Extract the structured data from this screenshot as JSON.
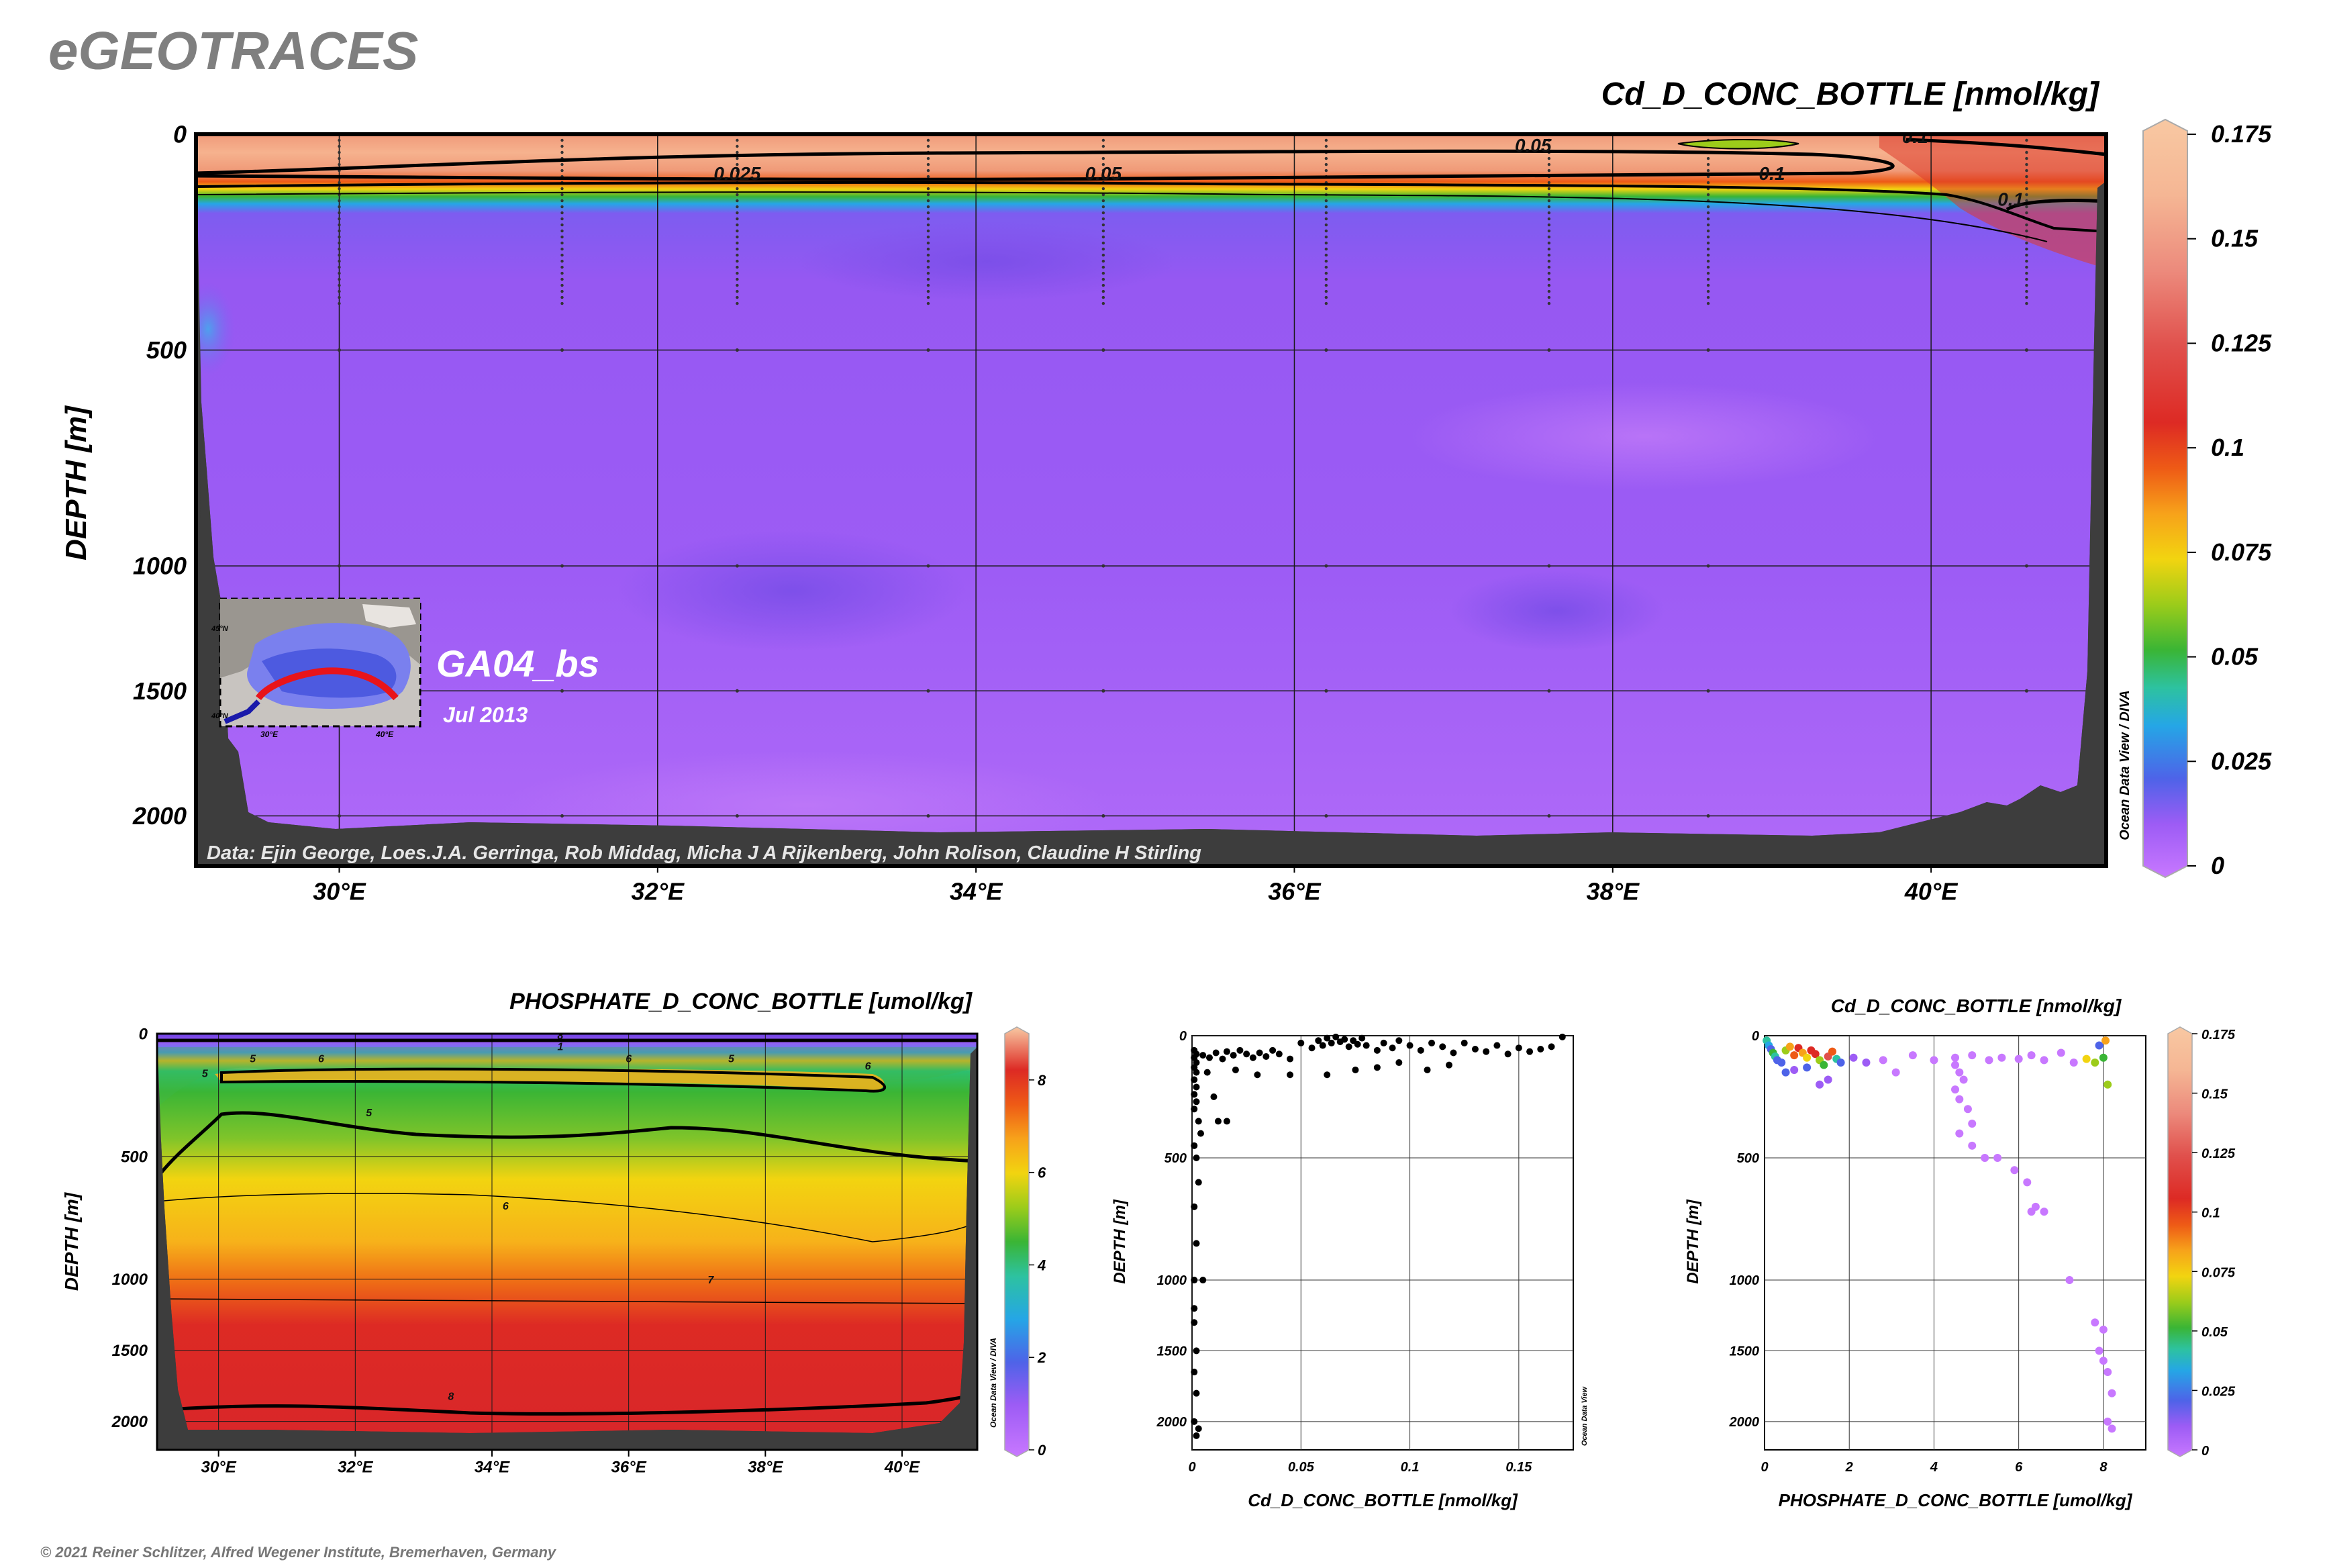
{
  "header": {
    "brand": "eGEOTRACES",
    "copyright": "© 2021 Reiner Schlitzer, Alfred Wegener Institute, Bremerhaven, Germany",
    "odv_credit_diva": "Ocean Data View / DIVA",
    "odv_credit": "Ocean Data View"
  },
  "main": {
    "title": "Cd_D_CONC_BOTTLE [nmol/kg]",
    "section_label": "GA04_bs",
    "date_label": "Jul 2013",
    "data_credit": "Data: Ejin George, Loes.J.A. Gerringa, Rob Middag, Micha J A Rijkenberg, John Rolison, Claudine H Stirling",
    "inset_lat_labels": [
      "45°N",
      "40°N"
    ],
    "inset_lon_labels": [
      "30°E",
      "40°E"
    ]
  },
  "colors": {
    "background_purple": "#9e5cf5",
    "bathymetry": "#3d3d3d",
    "grid": "#1a1a1a",
    "palette": [
      "#c878ff",
      "#9d5cf5",
      "#4e63e8",
      "#25a6e6",
      "#2dc2a0",
      "#3ab535",
      "#9ccc1a",
      "#f2d410",
      "#f7a21a",
      "#ee5a16",
      "#dd2a24",
      "#e0504c",
      "#ec8a7c",
      "#f5b694",
      "#f8c8a2"
    ]
  },
  "chart_data": [
    {
      "type": "heatmap",
      "title": "Cd_D_CONC_BOTTLE [nmol/kg]",
      "xlabel": "",
      "ylabel": "DEPTH [m]",
      "x_ticks": [
        "30°E",
        "32°E",
        "34°E",
        "36°E",
        "38°E",
        "40°E"
      ],
      "y_ticks": [
        "0",
        "500",
        "1000",
        "1500",
        "2000"
      ],
      "xlim": [
        29.1,
        41.1
      ],
      "ylim": [
        2200,
        0
      ],
      "colorbar_ticks": [
        "0.175",
        "0.15",
        "0.125",
        "0.1",
        "0.075",
        "0.05",
        "0.025",
        "0"
      ],
      "colorbar_range": [
        0,
        0.175
      ],
      "contour_labels": [
        {
          "label": "0.025",
          "lon": 32.5,
          "depth": 90
        },
        {
          "label": "0.05",
          "lon": 34.8,
          "depth": 90
        },
        {
          "label": "0.05",
          "lon": 37.5,
          "depth": 25
        },
        {
          "label": "0.1",
          "lon": 39.0,
          "depth": 90
        },
        {
          "label": "0.1",
          "lon": 40.5,
          "depth": 150
        },
        {
          "label": "0.1",
          "lon": 39.9,
          "depth": 5
        }
      ],
      "station_lons": [
        30.0,
        31.4,
        32.5,
        33.7,
        34.8,
        36.2,
        37.6,
        38.6,
        40.6
      ]
    },
    {
      "type": "heatmap",
      "title": "PHOSPHATE_D_CONC_BOTTLE [umol/kg]",
      "xlabel": "",
      "ylabel": "DEPTH [m]",
      "x_ticks": [
        "30°E",
        "32°E",
        "34°E",
        "36°E",
        "38°E",
        "40°E"
      ],
      "y_ticks": [
        "0",
        "500",
        "1000",
        "1500",
        "2000"
      ],
      "xlim": [
        29.1,
        41.1
      ],
      "ylim": [
        2200,
        0
      ],
      "colorbar_ticks": [
        "8",
        "6",
        "4",
        "2",
        "0"
      ],
      "colorbar_range": [
        0,
        9
      ],
      "contour_labels": [
        {
          "label": "8",
          "lon": 35.0,
          "depth": 5
        },
        {
          "label": "1",
          "lon": 35.0,
          "depth": 50
        },
        {
          "label": "6",
          "lon": 31.5,
          "depth": 100
        },
        {
          "label": "5",
          "lon": 30.5,
          "depth": 100
        },
        {
          "label": "5",
          "lon": 29.8,
          "depth": 160
        },
        {
          "label": "6",
          "lon": 36.0,
          "depth": 100
        },
        {
          "label": "5",
          "lon": 37.5,
          "depth": 100
        },
        {
          "label": "6",
          "lon": 39.5,
          "depth": 130
        },
        {
          "label": "5",
          "lon": 32.2,
          "depth": 320
        },
        {
          "label": "6",
          "lon": 34.2,
          "depth": 700
        },
        {
          "label": "7",
          "lon": 37.2,
          "depth": 1000
        },
        {
          "label": "8",
          "lon": 33.4,
          "depth": 1820
        }
      ]
    },
    {
      "type": "scatter",
      "title": "",
      "xlabel": "Cd_D_CONC_BOTTLE [nmol/kg]",
      "ylabel": "DEPTH [m]",
      "x_ticks": [
        "0",
        "0.05",
        "0.1",
        "0.15"
      ],
      "y_ticks": [
        "0",
        "500",
        "1000",
        "1500",
        "2000"
      ],
      "xlim": [
        0,
        0.175
      ],
      "ylim": [
        2200,
        0
      ],
      "points": [
        [
          0.001,
          60
        ],
        [
          0.002,
          75
        ],
        [
          0.001,
          90
        ],
        [
          0.002,
          110
        ],
        [
          0.001,
          130
        ],
        [
          0.002,
          150
        ],
        [
          0.001,
          180
        ],
        [
          0.002,
          210
        ],
        [
          0.001,
          240
        ],
        [
          0.002,
          270
        ],
        [
          0.001,
          300
        ],
        [
          0.003,
          350
        ],
        [
          0.004,
          400
        ],
        [
          0.001,
          450
        ],
        [
          0.002,
          500
        ],
        [
          0.003,
          600
        ],
        [
          0.001,
          700
        ],
        [
          0.002,
          850
        ],
        [
          0.001,
          1000
        ],
        [
          0.005,
          1000
        ],
        [
          0.001,
          1200
        ],
        [
          0.001,
          1300
        ],
        [
          0.002,
          1500
        ],
        [
          0.001,
          1650
        ],
        [
          0.002,
          1800
        ],
        [
          0.001,
          2000
        ],
        [
          0.003,
          2050
        ],
        [
          0.002,
          2100
        ],
        [
          0.005,
          80
        ],
        [
          0.008,
          90
        ],
        [
          0.011,
          70
        ],
        [
          0.014,
          95
        ],
        [
          0.016,
          65
        ],
        [
          0.019,
          80
        ],
        [
          0.022,
          60
        ],
        [
          0.025,
          75
        ],
        [
          0.028,
          90
        ],
        [
          0.031,
          70
        ],
        [
          0.034,
          85
        ],
        [
          0.037,
          60
        ],
        [
          0.04,
          75
        ],
        [
          0.045,
          95
        ],
        [
          0.05,
          30
        ],
        [
          0.055,
          50
        ],
        [
          0.058,
          20
        ],
        [
          0.06,
          40
        ],
        [
          0.062,
          10
        ],
        [
          0.064,
          30
        ],
        [
          0.066,
          5
        ],
        [
          0.068,
          25
        ],
        [
          0.07,
          15
        ],
        [
          0.072,
          45
        ],
        [
          0.074,
          20
        ],
        [
          0.076,
          35
        ],
        [
          0.078,
          10
        ],
        [
          0.08,
          40
        ],
        [
          0.085,
          60
        ],
        [
          0.088,
          30
        ],
        [
          0.092,
          50
        ],
        [
          0.095,
          20
        ],
        [
          0.1,
          40
        ],
        [
          0.105,
          60
        ],
        [
          0.11,
          30
        ],
        [
          0.115,
          45
        ],
        [
          0.12,
          70
        ],
        [
          0.125,
          30
        ],
        [
          0.13,
          55
        ],
        [
          0.135,
          65
        ],
        [
          0.14,
          40
        ],
        [
          0.145,
          75
        ],
        [
          0.15,
          50
        ],
        [
          0.155,
          65
        ],
        [
          0.16,
          55
        ],
        [
          0.165,
          45
        ],
        [
          0.17,
          5
        ],
        [
          0.012,
          350
        ],
        [
          0.016,
          350
        ],
        [
          0.007,
          150
        ],
        [
          0.01,
          250
        ],
        [
          0.02,
          140
        ],
        [
          0.03,
          160
        ],
        [
          0.045,
          160
        ],
        [
          0.062,
          160
        ],
        [
          0.075,
          140
        ],
        [
          0.085,
          130
        ],
        [
          0.095,
          110
        ],
        [
          0.108,
          140
        ],
        [
          0.118,
          120
        ]
      ]
    },
    {
      "type": "scatter",
      "title": "Cd_D_CONC_BOTTLE [nmol/kg]",
      "xlabel": "PHOSPHATE_D_CONC_BOTTLE [umol/kg]",
      "ylabel": "DEPTH [m]",
      "x_ticks": [
        "0",
        "2",
        "4",
        "6",
        "8"
      ],
      "y_ticks": [
        "0",
        "500",
        "1000",
        "1500",
        "2000"
      ],
      "xlim": [
        0,
        9
      ],
      "ylim": [
        2200,
        0
      ],
      "colorbar_ticks": [
        "0.175",
        "0.15",
        "0.125",
        "0.1",
        "0.075",
        "0.05",
        "0.025",
        "0"
      ],
      "colorbar_range": [
        0,
        0.175
      ],
      "points": [
        [
          0.05,
          20,
          0.05
        ],
        [
          0.1,
          40,
          0.04
        ],
        [
          0.15,
          55,
          0.03
        ],
        [
          0.2,
          70,
          0.06
        ],
        [
          0.25,
          85,
          0.05
        ],
        [
          0.3,
          100,
          0.02
        ],
        [
          0.4,
          110,
          0.03
        ],
        [
          0.5,
          60,
          0.08
        ],
        [
          0.6,
          45,
          0.1
        ],
        [
          0.7,
          80,
          0.11
        ],
        [
          0.8,
          50,
          0.12
        ],
        [
          0.9,
          70,
          0.1
        ],
        [
          1.0,
          90,
          0.09
        ],
        [
          1.1,
          60,
          0.13
        ],
        [
          1.2,
          75,
          0.12
        ],
        [
          1.3,
          100,
          0.07
        ],
        [
          1.4,
          120,
          0.06
        ],
        [
          1.5,
          85,
          0.14
        ],
        [
          1.6,
          65,
          0.11
        ],
        [
          1.7,
          95,
          0.05
        ],
        [
          1.8,
          110,
          0.03
        ],
        [
          1.0,
          130,
          0.02
        ],
        [
          0.7,
          140,
          0.01
        ],
        [
          0.5,
          150,
          0.02
        ],
        [
          1.5,
          180,
          0.01
        ],
        [
          1.3,
          200,
          0.015
        ],
        [
          2.1,
          90,
          0.01
        ],
        [
          2.4,
          110,
          0.008
        ],
        [
          2.8,
          100,
          0.005
        ],
        [
          3.1,
          150,
          0.006
        ],
        [
          3.5,
          80,
          0.004
        ],
        [
          4.0,
          100,
          0.003
        ],
        [
          4.5,
          90,
          0.004
        ],
        [
          4.9,
          80,
          0.003
        ],
        [
          5.3,
          100,
          0.003
        ],
        [
          5.6,
          90,
          0.004
        ],
        [
          6.0,
          95,
          0.002
        ],
        [
          6.3,
          80,
          0.004
        ],
        [
          6.6,
          100,
          0.003
        ],
        [
          7.0,
          70,
          0.002
        ],
        [
          7.3,
          110,
          0.003
        ],
        [
          7.6,
          95,
          0.09
        ],
        [
          7.8,
          110,
          0.08
        ],
        [
          8.0,
          90,
          0.06
        ],
        [
          8.1,
          200,
          0.07
        ],
        [
          8.05,
          20,
          0.1
        ],
        [
          7.9,
          40,
          0.03
        ],
        [
          4.5,
          120,
          0.002
        ],
        [
          4.6,
          150,
          0.002
        ],
        [
          4.7,
          180,
          0.002
        ],
        [
          4.5,
          220,
          0.002
        ],
        [
          4.6,
          260,
          0.002
        ],
        [
          4.8,
          300,
          0.002
        ],
        [
          4.9,
          360,
          0.002
        ],
        [
          4.6,
          400,
          0.002
        ],
        [
          4.9,
          450,
          0.002
        ],
        [
          5.2,
          500,
          0.002
        ],
        [
          5.5,
          500,
          0.002
        ],
        [
          5.9,
          550,
          0.002
        ],
        [
          6.2,
          600,
          0.002
        ],
        [
          6.4,
          700,
          0.002
        ],
        [
          6.3,
          720,
          0.002
        ],
        [
          6.6,
          720,
          0.002
        ],
        [
          7.2,
          1000,
          0.002
        ],
        [
          7.8,
          1300,
          0.002
        ],
        [
          8.0,
          1350,
          0.002
        ],
        [
          7.9,
          1500,
          0.002
        ],
        [
          8.0,
          1570,
          0.002
        ],
        [
          8.1,
          1650,
          0.002
        ],
        [
          8.2,
          1800,
          0.002
        ],
        [
          8.1,
          2000,
          0.002
        ],
        [
          8.2,
          2050,
          0.002
        ]
      ]
    }
  ]
}
